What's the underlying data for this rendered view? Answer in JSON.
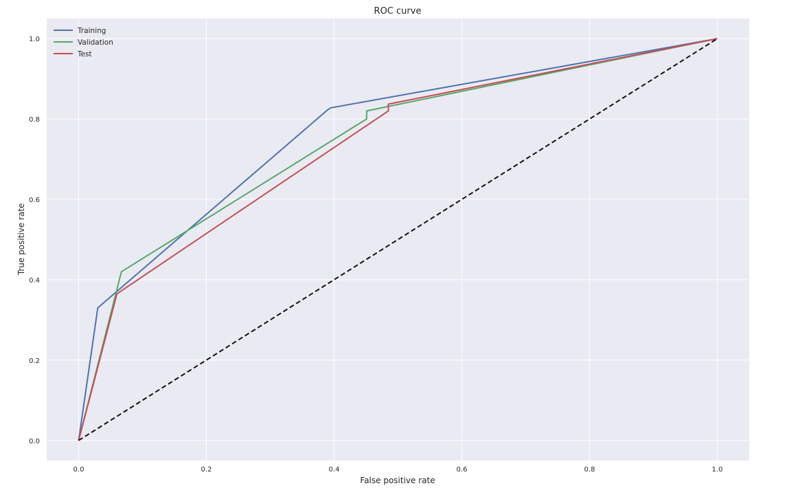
{
  "chart_data": {
    "type": "line",
    "title": "ROC curve",
    "xlabel": "False positive rate",
    "ylabel": "True positive rate",
    "xlim": [
      -0.05,
      1.05
    ],
    "ylim": [
      -0.05,
      1.05
    ],
    "xticks": [
      0.0,
      0.2,
      0.4,
      0.6,
      0.8,
      1.0
    ],
    "yticks": [
      0.0,
      0.2,
      0.4,
      0.6,
      0.8,
      1.0
    ],
    "xtick_labels": [
      "0.0",
      "0.2",
      "0.4",
      "0.6",
      "0.8",
      "1.0"
    ],
    "ytick_labels": [
      "0.0",
      "0.2",
      "0.4",
      "0.6",
      "0.8",
      "1.0"
    ],
    "grid": true,
    "legend_position": "top-left",
    "series": [
      {
        "name": "Training",
        "color": "#4c72b0",
        "x": [
          0.0,
          0.03,
          0.39,
          0.395,
          1.0
        ],
        "y": [
          0.0,
          0.33,
          0.823,
          0.828,
          1.0
        ]
      },
      {
        "name": "Validation",
        "color": "#55a868",
        "x": [
          0.0,
          0.067,
          0.451,
          0.451,
          1.0
        ],
        "y": [
          0.0,
          0.42,
          0.8,
          0.82,
          1.0
        ]
      },
      {
        "name": "Test",
        "color": "#c44e52",
        "x": [
          0.0,
          0.06,
          0.485,
          0.485,
          1.0
        ],
        "y": [
          0.0,
          0.365,
          0.82,
          0.837,
          1.0
        ]
      }
    ],
    "reference_line": {
      "color": "#111111",
      "style": "dashed",
      "x": [
        0.0,
        1.0
      ],
      "y": [
        0.0,
        1.0
      ]
    }
  }
}
